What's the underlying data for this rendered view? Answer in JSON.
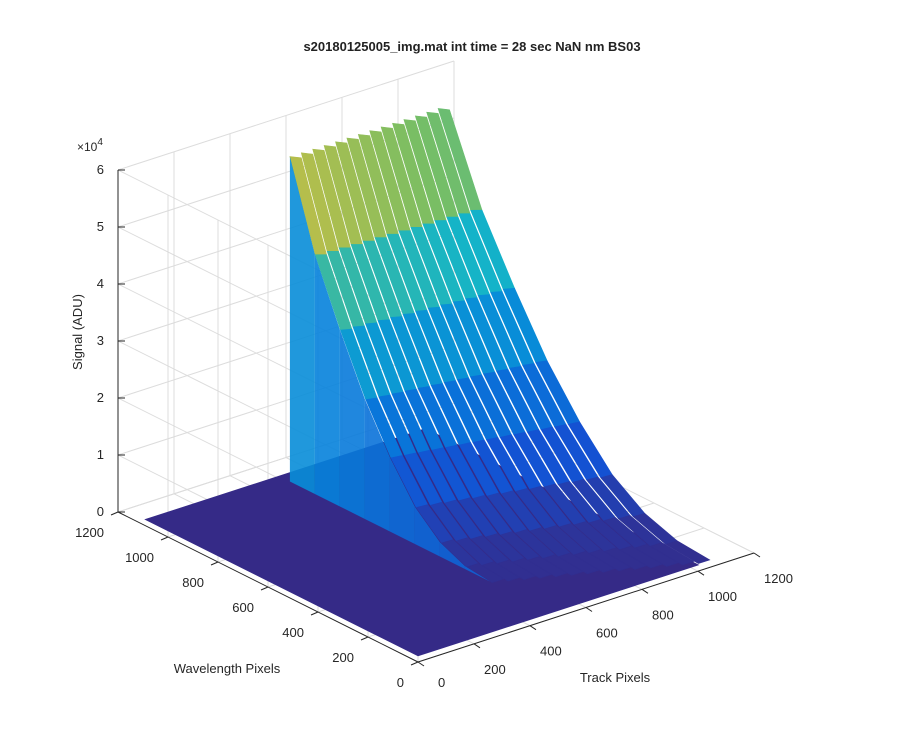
{
  "chart_data": {
    "type": "surface",
    "title": "s20180125005_img.mat int time = 28 sec  NaN nm BS03",
    "xlabel": "Track Pixels",
    "ylabel": "Wavelength Pixels",
    "zlabel": "Signal (ADU)",
    "z_exponent_label": "×10",
    "z_exponent_value": "4",
    "xlim": [
      0,
      1200
    ],
    "ylim": [
      0,
      1200
    ],
    "zlim": [
      0,
      60000
    ],
    "x_ticks": [
      "0",
      "200",
      "400",
      "600",
      "800",
      "1000",
      "1200"
    ],
    "y_ticks": [
      "0",
      "200",
      "400",
      "600",
      "800",
      "1000",
      "1200"
    ],
    "z_ticks": [
      "0",
      "1",
      "2",
      "3",
      "4",
      "5",
      "6"
    ],
    "grid": true,
    "colormap": "parula",
    "colors": {
      "floor": "#352a87",
      "low": "#2a5cd6",
      "mid": "#13b4cf",
      "high": "#a5be4f",
      "peak": "#f9e42a"
    },
    "floor_level": 1000,
    "peak": {
      "track_pixels": 520,
      "wavelength_pixels": 1050,
      "signal": 58000
    },
    "profile_along_wavelength": [
      {
        "wavelength_pixels": 1050,
        "signal": 58000
      },
      {
        "wavelength_pixels": 950,
        "signal": 43000
      },
      {
        "wavelength_pixels": 850,
        "signal": 32000
      },
      {
        "wavelength_pixels": 750,
        "signal": 22000
      },
      {
        "wavelength_pixels": 650,
        "signal": 14000
      },
      {
        "wavelength_pixels": 550,
        "signal": 7500
      },
      {
        "wavelength_pixels": 450,
        "signal": 3500
      },
      {
        "wavelength_pixels": 350,
        "signal": 1500
      },
      {
        "wavelength_pixels": 250,
        "signal": 1000
      }
    ],
    "ridge_track_extent": [
      480,
      1050
    ]
  }
}
